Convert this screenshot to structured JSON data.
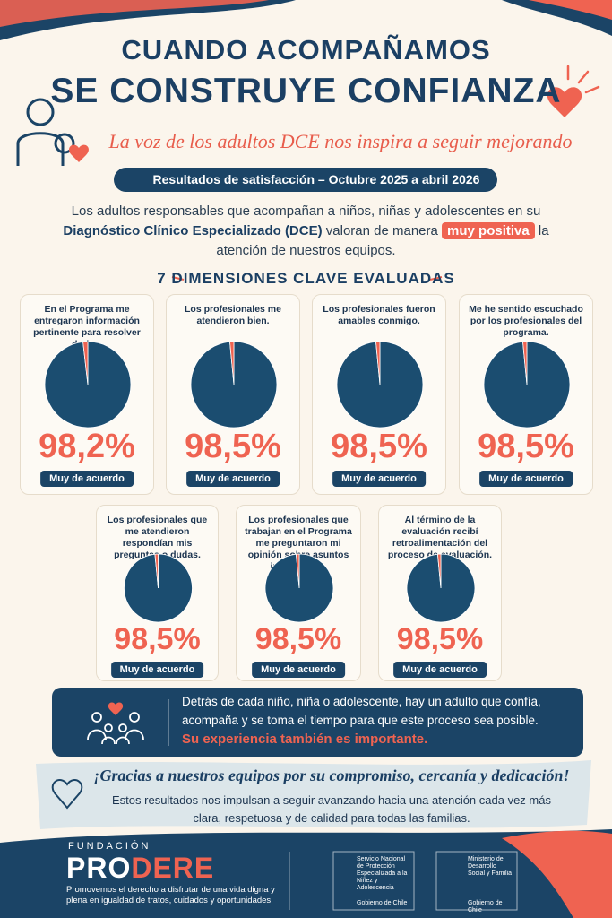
{
  "header": {
    "title_line1": "CUANDO ACOMPAÑAMOS",
    "title_line2": "SE CONSTRUYE CONFIANZA",
    "subtitle": "La voz de los adultos DCE nos inspira a seguir mejorando"
  },
  "period": "Resultados de satisfacción – Octubre 2025 a abril 2026",
  "intro": {
    "before": "Los adultos responsables que acompañan a niños, niñas y adolescentes en su",
    "bold": "Diagnóstico Clínico Especializado (DCE)",
    "middle": "valoran de manera",
    "highlight": "muy positiva",
    "after": "la atención de nuestros equipos."
  },
  "section_title": "7 DIMENSIONES CLAVE EVALUADAS",
  "chart_data": [
    {
      "type": "pie",
      "title": "En el Programa me entregaron información pertinente para resolver dudas.",
      "categories": [
        "Muy de acuerdo",
        null
      ],
      "values": [
        98.2,
        1.8
      ],
      "value_labels": [
        "98,2%",
        null
      ],
      "colors": [
        "#1b4d70",
        "#ef6351"
      ]
    },
    {
      "type": "pie",
      "title": "Los profesionales me atendieron bien.",
      "categories": [
        "Muy de acuerdo",
        null
      ],
      "values": [
        98.5,
        1.5
      ],
      "value_labels": [
        "98,5%",
        null
      ],
      "colors": [
        "#1b4d70",
        "#ef6351"
      ]
    },
    {
      "type": "pie",
      "title": "Los profesionales fueron amables conmigo.",
      "categories": [
        "Muy de acuerdo",
        null
      ],
      "values": [
        98.5,
        1.5
      ],
      "value_labels": [
        "98,5%",
        null
      ],
      "colors": [
        "#1b4d70",
        "#ef6351"
      ]
    },
    {
      "type": "pie",
      "title": "Me he sentido escuchado por los profesionales del programa.",
      "categories": [
        "Muy de acuerdo",
        null
      ],
      "values": [
        98.5,
        1.5
      ],
      "value_labels": [
        "98,5%",
        null
      ],
      "colors": [
        "#1b4d70",
        "#ef6351"
      ]
    },
    {
      "type": "pie",
      "title": "Los profesionales que me atendieron respondían mis preguntas o dudas.",
      "categories": [
        "Muy de acuerdo",
        null
      ],
      "values": [
        98.5,
        1.5
      ],
      "value_labels": [
        "98,5%",
        null
      ],
      "colors": [
        "#1b4d70",
        "#ef6351"
      ]
    },
    {
      "type": "pie",
      "title": "Los profesionales que trabajan en el Programa me preguntaron mi opinión sobre asuntos importantes.",
      "categories": [
        "Muy de acuerdo",
        null
      ],
      "values": [
        98.5,
        1.5
      ],
      "value_labels": [
        "98,5%",
        null
      ],
      "colors": [
        "#1b4d70",
        "#ef6351"
      ]
    },
    {
      "type": "pie",
      "title": "Al término de la evaluación recibí retroalimentación del proceso de evaluación.",
      "categories": [
        "Muy de acuerdo",
        null
      ],
      "values": [
        98.5,
        1.5
      ],
      "value_labels": [
        "98,5%",
        null
      ],
      "colors": [
        "#1b4d70",
        "#ef6351"
      ]
    }
  ],
  "message": {
    "text": "Detrás de cada niño, niña o adolescente, hay un adulto que confía, acompaña y se toma el tiempo para que este proceso sea posible.",
    "emphasis": "Su experiencia también es importante."
  },
  "thanks": {
    "title": "¡Gracias a nuestros equipos por su compromiso, cercanía y dedicación!",
    "text": "Estos resultados nos impulsan a seguir avanzando hacia una atención cada vez más clara, respetuosa y de calidad para todas las familias."
  },
  "footer": {
    "brand_small": "FUNDACIÓN",
    "brand_pro": "PRO",
    "brand_dere": "DERE",
    "tagline": "Promovemos el derecho a disfrutar de una vida digna y plena en igualdad de tratos, cuidados y oportunidades.",
    "logo1_name": "Servicio Nacional de Protección Especializada a la Niñez y Adolescencia",
    "logo1_gov": "Gobierno de Chile",
    "logo2_name": "Ministerio de Desarrollo Social y Familia",
    "logo2_gov": "Gobierno de Chile"
  }
}
